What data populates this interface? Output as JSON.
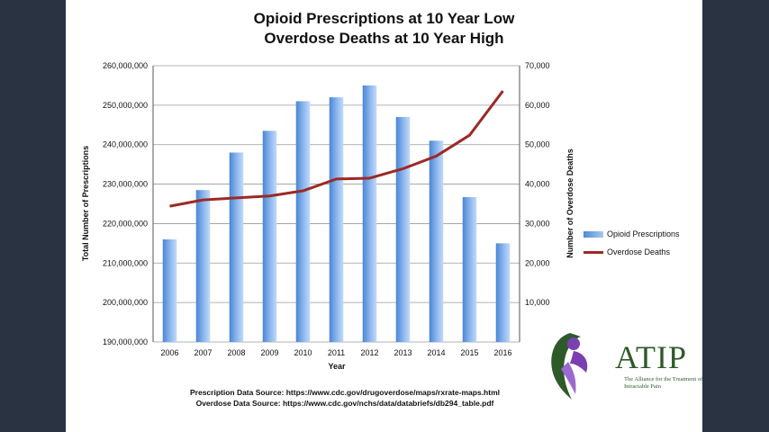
{
  "chart_data": {
    "type": "bar",
    "title": [
      "Opioid Prescriptions at 10 Year Low",
      "Overdose Deaths at 10 Year High"
    ],
    "xlabel": "Year",
    "ylabel_left": "Total Number of Prescriptions",
    "ylabel_right": "Number of Overdose Deaths",
    "categories": [
      "2006",
      "2007",
      "2008",
      "2009",
      "2010",
      "2011",
      "2012",
      "2013",
      "2014",
      "2015",
      "2016"
    ],
    "ylim_left": [
      190000000,
      260000000
    ],
    "ylim_right": [
      0,
      70000
    ],
    "yticks_left": [
      "190,000,000",
      "200,000,000",
      "210,000,000",
      "220,000,000",
      "230,000,000",
      "240,000,000",
      "250,000,000",
      "260,000,000"
    ],
    "yticks_right": [
      "",
      "10,000",
      "20,000",
      "30,000",
      "40,000",
      "50,000",
      "60,000",
      "70,000"
    ],
    "grid": true,
    "legend_position": "right",
    "series": [
      {
        "name": "Opioid Prescriptions",
        "type": "bar",
        "axis": "left",
        "color": "#5b96e0",
        "values": [
          216000000,
          228500000,
          238000000,
          243500000,
          251000000,
          252000000,
          255000000,
          247000000,
          241000000,
          226700000,
          215000000
        ]
      },
      {
        "name": "Overdose Deaths",
        "type": "line",
        "axis": "right",
        "color": "#9b2a25",
        "values": [
          34400,
          36000,
          36500,
          37000,
          38300,
          41300,
          41500,
          43900,
          47100,
          52400,
          63600
        ]
      }
    ]
  },
  "sources": {
    "prescription": "Prescription Data Source:  https://www.cdc.gov/drugoverdose/maps/rxrate-maps.html",
    "overdose": "Overdose Data Source:  https://www.cdc.gov/nchs/data/databriefs/db294_table.pdf"
  },
  "logo": {
    "name": "ATIP",
    "tagline": "The Alliance for the Treatment of Intractable Pain"
  }
}
